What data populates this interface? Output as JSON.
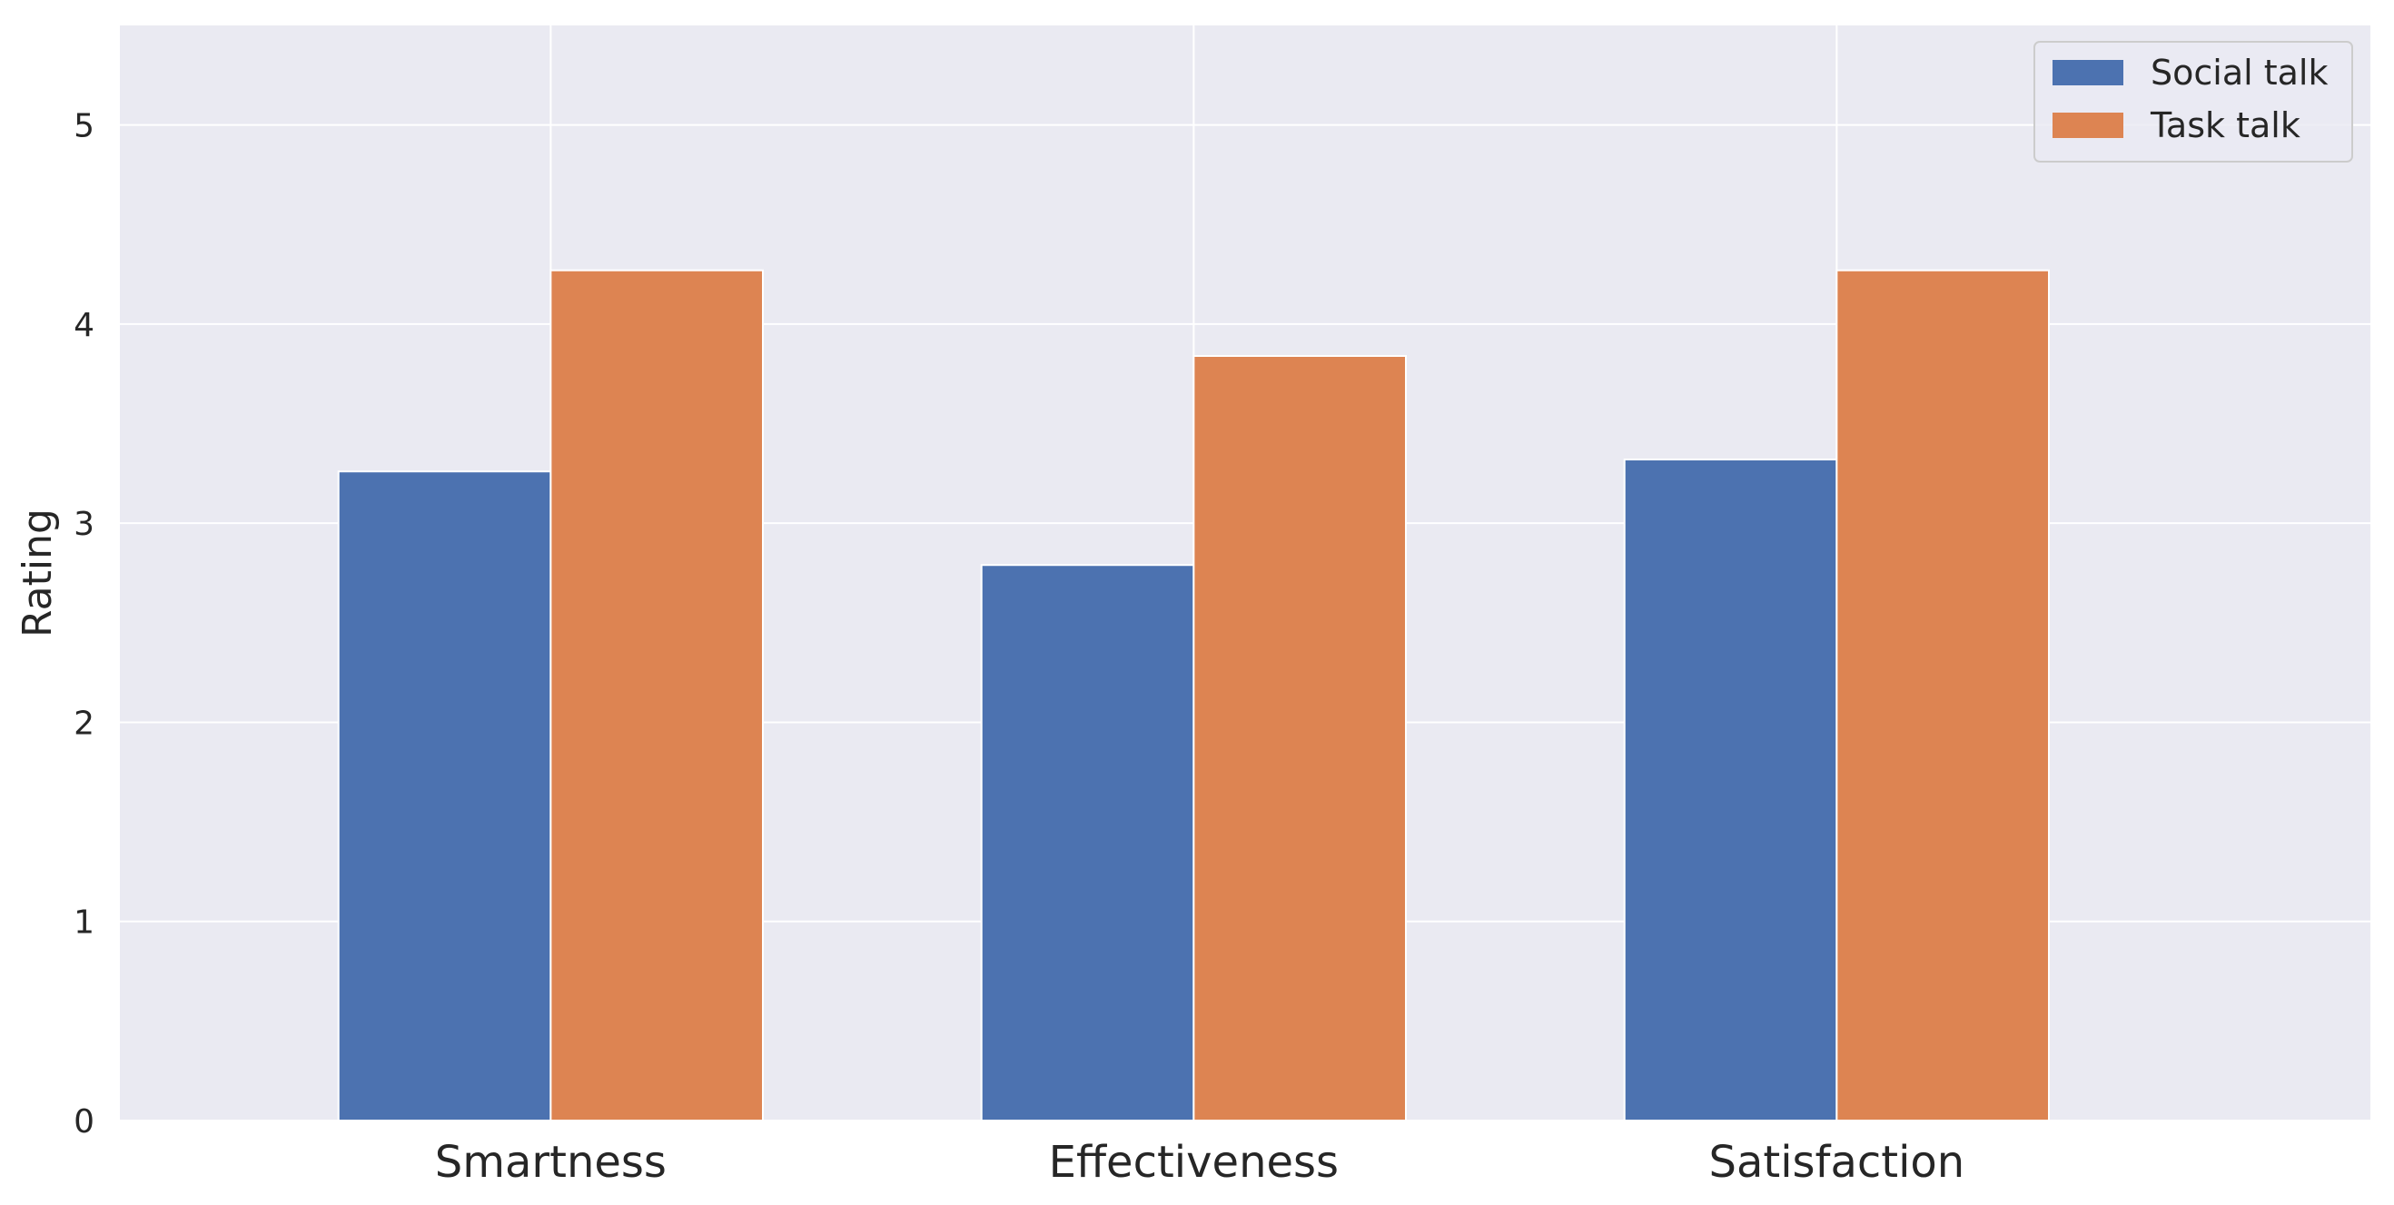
{
  "chart_data": {
    "type": "bar",
    "categories": [
      "Smartness",
      "Effectiveness",
      "Satisfaction"
    ],
    "series": [
      {
        "name": "Social talk",
        "values": [
          3.26,
          2.79,
          3.32
        ],
        "color": "#4c72b0"
      },
      {
        "name": "Task talk",
        "values": [
          4.27,
          3.84,
          4.27
        ],
        "color": "#dd8452"
      }
    ],
    "title": "",
    "xlabel": "",
    "ylabel": "Rating",
    "ylim": [
      0,
      5.5
    ],
    "yticks": [
      0,
      1,
      2,
      3,
      4,
      5
    ],
    "grid": true,
    "legend_position": "top-right",
    "background": "#eaeaf2"
  }
}
